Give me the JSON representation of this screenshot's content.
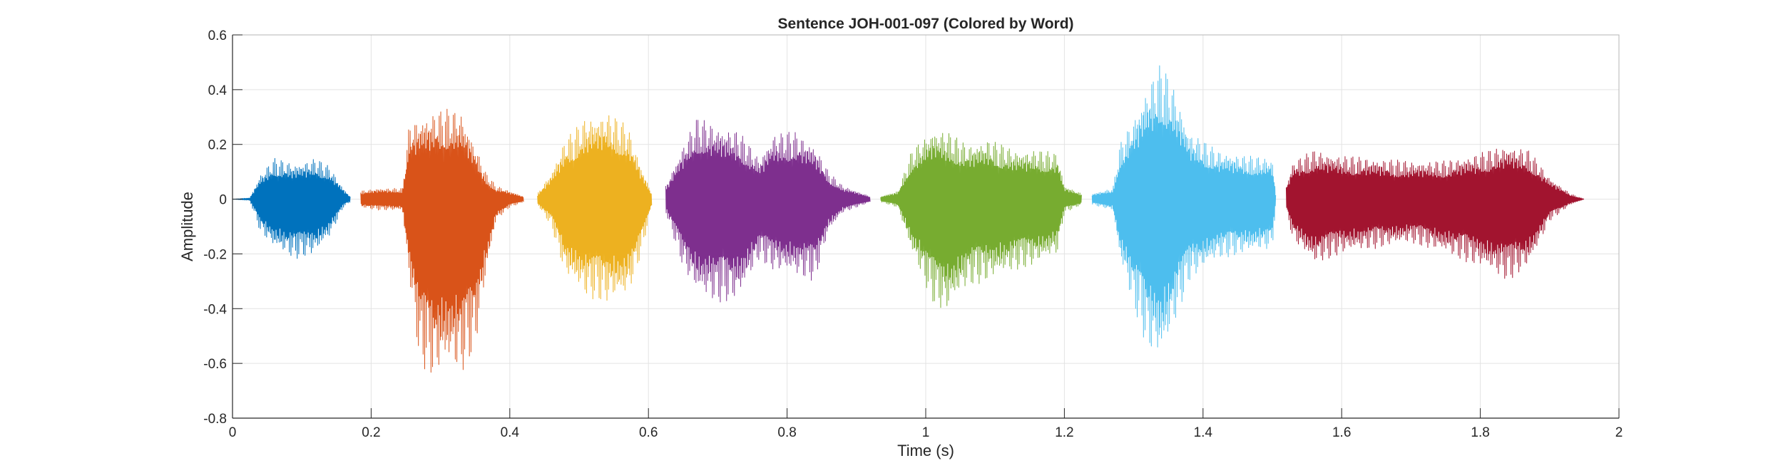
{
  "chart_data": {
    "type": "line",
    "title": "Sentence JOH-001-097 (Colored by Word)",
    "xlabel": "Time (s)",
    "ylabel": "Amplitude",
    "xlim": [
      0,
      2
    ],
    "ylim": [
      -0.8,
      0.6
    ],
    "xticks": [
      0,
      0.2,
      0.4,
      0.6,
      0.8,
      1,
      1.2,
      1.4,
      1.6,
      1.8,
      2
    ],
    "xtick_labels": [
      "0",
      "0.2",
      "0.4",
      "0.6",
      "0.8",
      "1",
      "1.2",
      "1.4",
      "1.6",
      "1.8",
      "2"
    ],
    "yticks": [
      -0.8,
      -0.6,
      -0.4,
      -0.2,
      0,
      0.2,
      0.4,
      0.6
    ],
    "ytick_labels": [
      "-0.8",
      "-0.6",
      "-0.4",
      "-0.2",
      "0",
      "0.2",
      "0.4",
      "0.6"
    ],
    "grid": true,
    "segments": [
      {
        "color": "#0072BD",
        "start": 0.0,
        "end": 0.17,
        "env": [
          [
            0.0,
            0.0,
            0.0
          ],
          [
            0.025,
            0.005,
            0.005
          ],
          [
            0.04,
            0.09,
            0.12
          ],
          [
            0.06,
            0.15,
            0.18
          ],
          [
            0.09,
            0.13,
            0.22
          ],
          [
            0.12,
            0.15,
            0.2
          ],
          [
            0.14,
            0.12,
            0.14
          ],
          [
            0.16,
            0.04,
            0.03
          ],
          [
            0.17,
            0.01,
            0.01
          ]
        ]
      },
      {
        "color": "#D95319",
        "start": 0.185,
        "end": 0.42,
        "env": [
          [
            0.185,
            0.03,
            0.03
          ],
          [
            0.21,
            0.04,
            0.04
          ],
          [
            0.245,
            0.04,
            0.04
          ],
          [
            0.255,
            0.28,
            0.3
          ],
          [
            0.27,
            0.3,
            0.6
          ],
          [
            0.29,
            0.32,
            0.66
          ],
          [
            0.31,
            0.33,
            0.62
          ],
          [
            0.33,
            0.32,
            0.64
          ],
          [
            0.35,
            0.2,
            0.55
          ],
          [
            0.365,
            0.1,
            0.3
          ],
          [
            0.38,
            0.05,
            0.08
          ],
          [
            0.4,
            0.03,
            0.03
          ],
          [
            0.42,
            0.01,
            0.01
          ]
        ]
      },
      {
        "color": "#EDB120",
        "start": 0.44,
        "end": 0.605,
        "env": [
          [
            0.44,
            0.02,
            0.02
          ],
          [
            0.46,
            0.1,
            0.1
          ],
          [
            0.48,
            0.22,
            0.28
          ],
          [
            0.51,
            0.3,
            0.36
          ],
          [
            0.54,
            0.32,
            0.38
          ],
          [
            0.57,
            0.27,
            0.36
          ],
          [
            0.59,
            0.12,
            0.2
          ],
          [
            0.605,
            0.02,
            0.02
          ]
        ]
      },
      {
        "color": "#7E2F8E",
        "start": 0.625,
        "end": 0.92,
        "env": [
          [
            0.625,
            0.05,
            0.05
          ],
          [
            0.65,
            0.2,
            0.25
          ],
          [
            0.67,
            0.3,
            0.35
          ],
          [
            0.7,
            0.27,
            0.38
          ],
          [
            0.73,
            0.25,
            0.37
          ],
          [
            0.76,
            0.15,
            0.22
          ],
          [
            0.78,
            0.24,
            0.26
          ],
          [
            0.81,
            0.25,
            0.28
          ],
          [
            0.84,
            0.2,
            0.3
          ],
          [
            0.86,
            0.1,
            0.12
          ],
          [
            0.88,
            0.05,
            0.05
          ],
          [
            0.92,
            0.01,
            0.01
          ]
        ]
      },
      {
        "color": "#77AC30",
        "start": 0.935,
        "end": 1.225,
        "env": [
          [
            0.935,
            0.01,
            0.01
          ],
          [
            0.96,
            0.03,
            0.03
          ],
          [
            0.98,
            0.18,
            0.2
          ],
          [
            1.01,
            0.26,
            0.38
          ],
          [
            1.03,
            0.25,
            0.42
          ],
          [
            1.06,
            0.2,
            0.32
          ],
          [
            1.09,
            0.22,
            0.3
          ],
          [
            1.13,
            0.18,
            0.26
          ],
          [
            1.16,
            0.18,
            0.24
          ],
          [
            1.19,
            0.17,
            0.2
          ],
          [
            1.2,
            0.05,
            0.05
          ],
          [
            1.225,
            0.02,
            0.02
          ]
        ]
      },
      {
        "color": "#4DBEEE",
        "start": 1.24,
        "end": 1.505,
        "env": [
          [
            1.24,
            0.02,
            0.02
          ],
          [
            1.27,
            0.04,
            0.04
          ],
          [
            1.28,
            0.2,
            0.22
          ],
          [
            1.3,
            0.3,
            0.4
          ],
          [
            1.32,
            0.42,
            0.55
          ],
          [
            1.34,
            0.5,
            0.6
          ],
          [
            1.36,
            0.4,
            0.45
          ],
          [
            1.38,
            0.25,
            0.3
          ],
          [
            1.42,
            0.18,
            0.22
          ],
          [
            1.46,
            0.16,
            0.2
          ],
          [
            1.5,
            0.15,
            0.18
          ],
          [
            1.505,
            0.02,
            0.02
          ]
        ]
      },
      {
        "color": "#A2142F",
        "start": 1.52,
        "end": 1.95,
        "env": [
          [
            1.52,
            0.05,
            0.05
          ],
          [
            1.53,
            0.14,
            0.15
          ],
          [
            1.56,
            0.18,
            0.24
          ],
          [
            1.6,
            0.16,
            0.2
          ],
          [
            1.65,
            0.15,
            0.18
          ],
          [
            1.7,
            0.14,
            0.16
          ],
          [
            1.75,
            0.14,
            0.2
          ],
          [
            1.8,
            0.17,
            0.25
          ],
          [
            1.84,
            0.2,
            0.3
          ],
          [
            1.87,
            0.18,
            0.25
          ],
          [
            1.9,
            0.08,
            0.08
          ],
          [
            1.93,
            0.02,
            0.02
          ],
          [
            1.95,
            0.0,
            0.0
          ]
        ]
      }
    ]
  }
}
